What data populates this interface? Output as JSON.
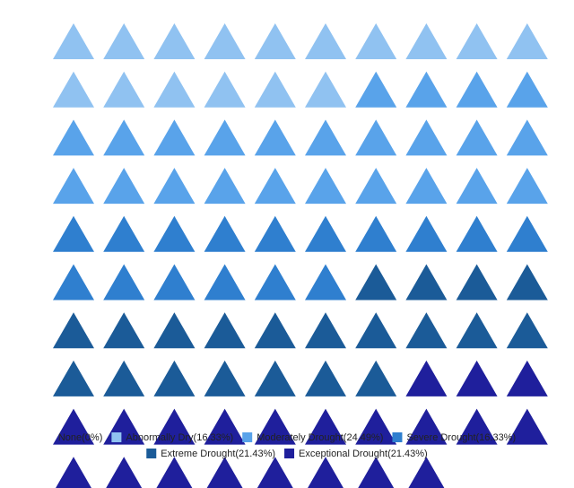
{
  "chart_data": {
    "type": "waffle",
    "marker": "triangle",
    "total_icons": 98,
    "grid": false,
    "legend_position": "bottom",
    "categories": [
      {
        "name": "None",
        "percent": 0,
        "count": 0,
        "color": "#cfe3f7",
        "legend_label": "None(0%)"
      },
      {
        "name": "Abnormally Dry",
        "percent": 16.33,
        "count": 16,
        "color": "#90c2f1",
        "legend_label": "Abnormally Dry(16.33%)"
      },
      {
        "name": "Moderately Drought",
        "percent": 24.49,
        "count": 24,
        "color": "#59a3ea",
        "legend_label": "Moderately Drought(24.49%)"
      },
      {
        "name": "Severe Drought",
        "percent": 16.33,
        "count": 16,
        "color": "#2f7fcf",
        "legend_label": "Severe Drought(16.33%)"
      },
      {
        "name": "Extreme Drought",
        "percent": 21.43,
        "count": 21,
        "color": "#1b5b98",
        "legend_label": "Extreme Drought(21.43%)"
      },
      {
        "name": "Exceptional Drought",
        "percent": 21.43,
        "count": 21,
        "color": "#1f1f9c",
        "legend_label": "Exceptional Drought(21.43%)"
      }
    ]
  }
}
